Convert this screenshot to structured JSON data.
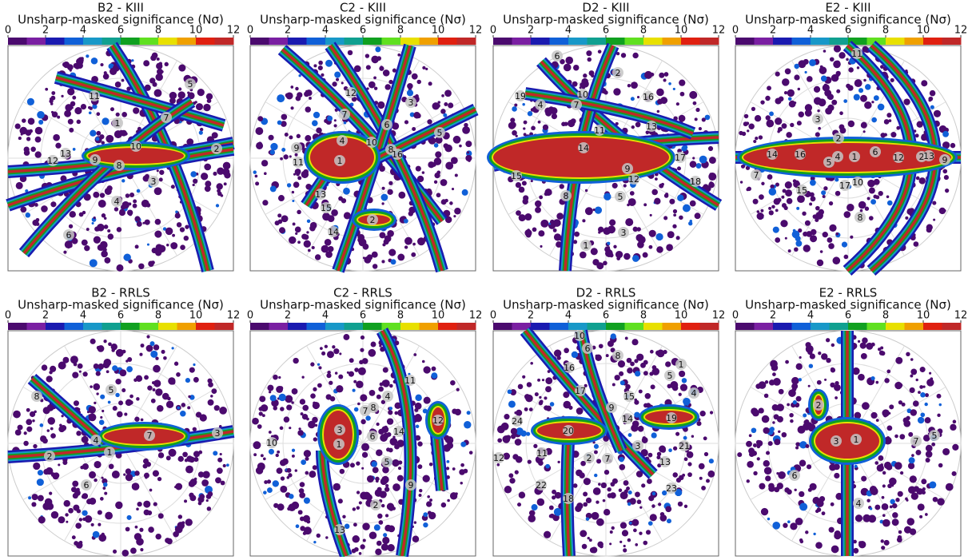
{
  "colorbar": {
    "range": [
      0,
      12
    ],
    "ticks": [
      0,
      2,
      4,
      6,
      8,
      10,
      12
    ],
    "colors": [
      "#4b0a6e",
      "#7a1fa2",
      "#1a1ab0",
      "#1060d8",
      "#1898c8",
      "#10a090",
      "#10a020",
      "#60e020",
      "#e8e000",
      "#f0a000",
      "#e02010",
      "#c02828"
    ]
  },
  "panels": [
    {
      "title": "B2 - KIII",
      "subtitle": "Unsharp-masked significance (Nσ)",
      "labels": [
        "5",
        "11",
        "7",
        "1",
        "10",
        "2",
        "13",
        "12",
        "9",
        "8",
        "3",
        "4",
        "6"
      ]
    },
    {
      "title": "C2 - KIII",
      "subtitle": "Unsharp-masked significance (Nσ)",
      "labels": [
        "12",
        "3",
        "7",
        "6",
        "5",
        "4",
        "10",
        "9",
        "8",
        "16",
        "1",
        "11",
        "13",
        "15",
        "2",
        "14"
      ]
    },
    {
      "title": "D2 - KIII",
      "subtitle": "Unsharp-masked significance (Nσ)",
      "labels": [
        "6",
        "2",
        "19",
        "10",
        "4",
        "7",
        "16",
        "11",
        "13",
        "14",
        "17",
        "9",
        "15",
        "12",
        "18",
        "5",
        "8",
        "3",
        "1"
      ]
    },
    {
      "title": "E2 - KIII",
      "subtitle": "Unsharp-masked significance (Nσ)",
      "labels": [
        "11",
        "3",
        "2",
        "14",
        "16",
        "4",
        "1",
        "6",
        "5",
        "12",
        "2",
        "13",
        "9",
        "7",
        "15",
        "17",
        "10",
        "8"
      ]
    },
    {
      "title": "B2 - RRLS",
      "subtitle": "Unsharp-masked significance (Nσ)",
      "labels": [
        "5",
        "8",
        "7",
        "3",
        "4",
        "2",
        "1",
        "6"
      ]
    },
    {
      "title": "C2 - RRLS",
      "subtitle": "Unsharp-masked significance (Nσ)",
      "labels": [
        "11",
        "4",
        "7",
        "8",
        "12",
        "3",
        "14",
        "6",
        "1",
        "10",
        "5",
        "9",
        "2",
        "13"
      ]
    },
    {
      "title": "D2 - RRLS",
      "subtitle": "Unsharp-masked significance (Nσ)",
      "labels": [
        "10",
        "6",
        "8",
        "16",
        "1",
        "5",
        "17",
        "15",
        "4",
        "9",
        "19",
        "24",
        "14",
        "20",
        "3",
        "21",
        "11",
        "2",
        "7",
        "12",
        "13",
        "22",
        "23",
        "18"
      ]
    },
    {
      "title": "E2 - RRLS",
      "subtitle": "Unsharp-masked significance (Nσ)",
      "labels": [
        "2",
        "3",
        "1",
        "7",
        "5",
        "6",
        "4"
      ]
    }
  ]
}
